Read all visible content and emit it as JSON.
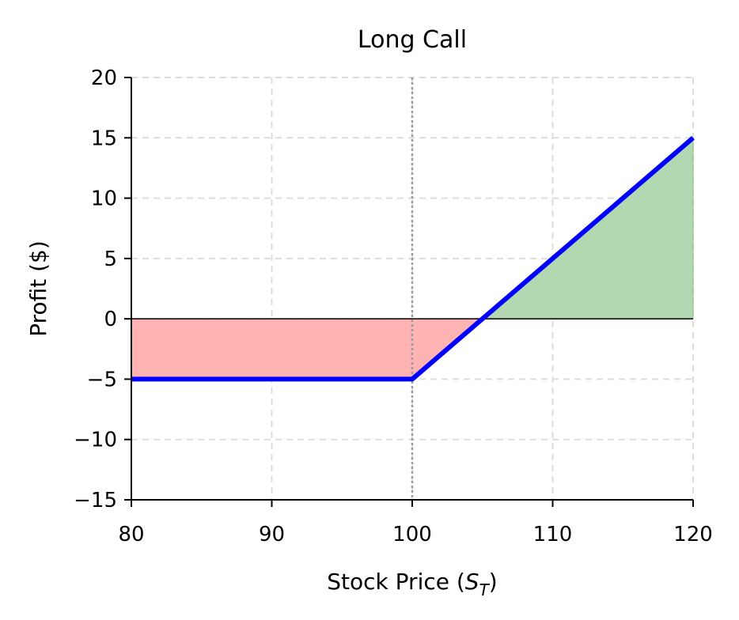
{
  "chart_data": {
    "type": "line",
    "title": "Long Call",
    "xlabel_main": "Stock Price (",
    "xlabel_var": "S",
    "xlabel_sub": "T",
    "xlabel_close": ")",
    "ylabel": "Profit ($)",
    "xlim": [
      80,
      120
    ],
    "ylim": [
      -15,
      20
    ],
    "x_ticks": [
      80,
      90,
      100,
      110,
      120
    ],
    "y_ticks": [
      -15,
      -10,
      -5,
      0,
      5,
      10,
      15,
      20
    ],
    "x_tick_labels": [
      "80",
      "90",
      "100",
      "110",
      "120"
    ],
    "y_tick_labels": [
      "−15",
      "−10",
      "−5",
      "0",
      "5",
      "10",
      "15",
      "20"
    ],
    "grid": true,
    "strike": 100,
    "premium": 5,
    "breakeven": 105,
    "series": [
      {
        "x": [
          80,
          100,
          120
        ],
        "y": [
          -5,
          -5,
          15
        ]
      }
    ],
    "colors": {
      "line": "#0000ff",
      "loss_fill": "#ffb3b3",
      "profit_fill": "#b2d8b2",
      "grid": "#dddddd",
      "strike_line": "#999999",
      "zero_line": "#000000"
    }
  }
}
